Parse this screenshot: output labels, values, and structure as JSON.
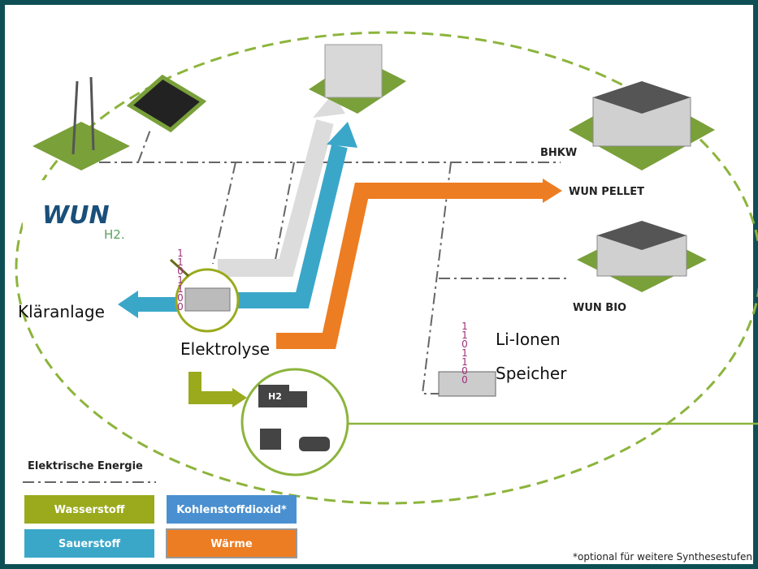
{
  "logo": {
    "main": "WUN",
    "sub": "H2."
  },
  "nodes": {
    "bhkw": "BHKW",
    "pellet": "WUN PELLET",
    "bio": "WUN BIO",
    "klaeranlage": "Kläranlage",
    "elektrolyse": "Elektrolyse",
    "speicher": [
      "Li-Ionen",
      "Speicher"
    ],
    "truck": "H2"
  },
  "binary": [
    "1101100",
    "1101100"
  ],
  "legend": {
    "title": "Elektrische Energie",
    "items": [
      "Wasserstoff",
      "Kohlenstoffdioxid*",
      "Sauerstoff",
      "Wärme"
    ]
  },
  "footnote": "*optional für weitere Synthesestufen"
}
